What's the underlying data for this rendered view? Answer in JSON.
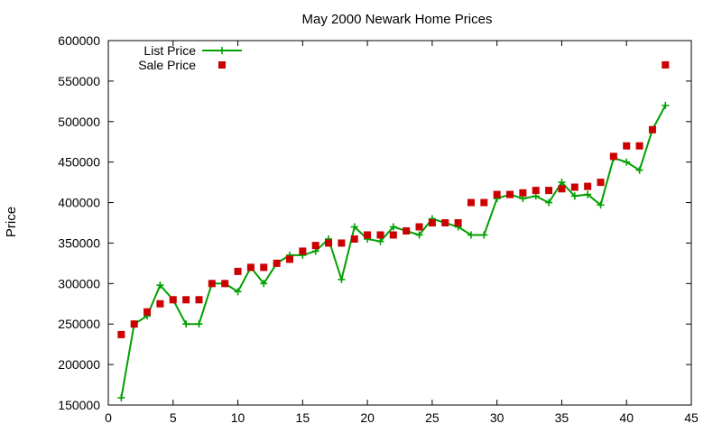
{
  "chart_data": {
    "type": "line",
    "title": "May 2000 Newark Home Prices",
    "xlabel": "",
    "ylabel": "Price",
    "xlim": [
      0,
      45
    ],
    "ylim": [
      150000,
      600000
    ],
    "xticks": [
      0,
      5,
      10,
      15,
      20,
      25,
      30,
      35,
      40,
      45
    ],
    "yticks": [
      150000,
      200000,
      250000,
      300000,
      350000,
      400000,
      450000,
      500000,
      550000,
      600000
    ],
    "grid": false,
    "legend_position": "top-left",
    "series": [
      {
        "name": "List Price",
        "style": "line+cross",
        "color": "#00a000",
        "x": [
          1,
          2,
          3,
          4,
          5,
          6,
          7,
          8,
          9,
          10,
          11,
          12,
          13,
          14,
          15,
          16,
          17,
          18,
          19,
          20,
          21,
          22,
          23,
          24,
          25,
          26,
          27,
          28,
          29,
          30,
          31,
          32,
          33,
          34,
          35,
          36,
          37,
          38,
          39,
          40,
          41,
          42,
          43
        ],
        "y": [
          159000,
          250000,
          260000,
          298000,
          280000,
          250000,
          250000,
          300000,
          300000,
          290000,
          320000,
          300000,
          325000,
          335000,
          335000,
          340000,
          355000,
          305000,
          370000,
          355000,
          352000,
          370000,
          365000,
          360000,
          380000,
          375000,
          370000,
          360000,
          360000,
          405000,
          410000,
          405000,
          408000,
          400000,
          425000,
          408000,
          410000,
          397000,
          455000,
          450000,
          440000,
          490000,
          520000
        ]
      },
      {
        "name": "Sale Price",
        "style": "square",
        "color": "#cc0000",
        "x": [
          1,
          2,
          3,
          4,
          5,
          6,
          7,
          8,
          9,
          10,
          11,
          12,
          13,
          14,
          15,
          16,
          17,
          18,
          19,
          20,
          21,
          22,
          23,
          24,
          25,
          26,
          27,
          28,
          29,
          30,
          31,
          32,
          33,
          34,
          35,
          36,
          37,
          38,
          39,
          40,
          41,
          42,
          43
        ],
        "y": [
          237000,
          250000,
          265000,
          275000,
          280000,
          280000,
          280000,
          300000,
          300000,
          315000,
          320000,
          320000,
          325000,
          330000,
          340000,
          347000,
          350000,
          350000,
          355000,
          360000,
          360000,
          360000,
          365000,
          370000,
          375000,
          375000,
          375000,
          400000,
          400000,
          410000,
          410000,
          412000,
          415000,
          415000,
          417000,
          419000,
          420000,
          425000,
          457000,
          470000,
          470000,
          490000,
          570000
        ]
      }
    ]
  }
}
